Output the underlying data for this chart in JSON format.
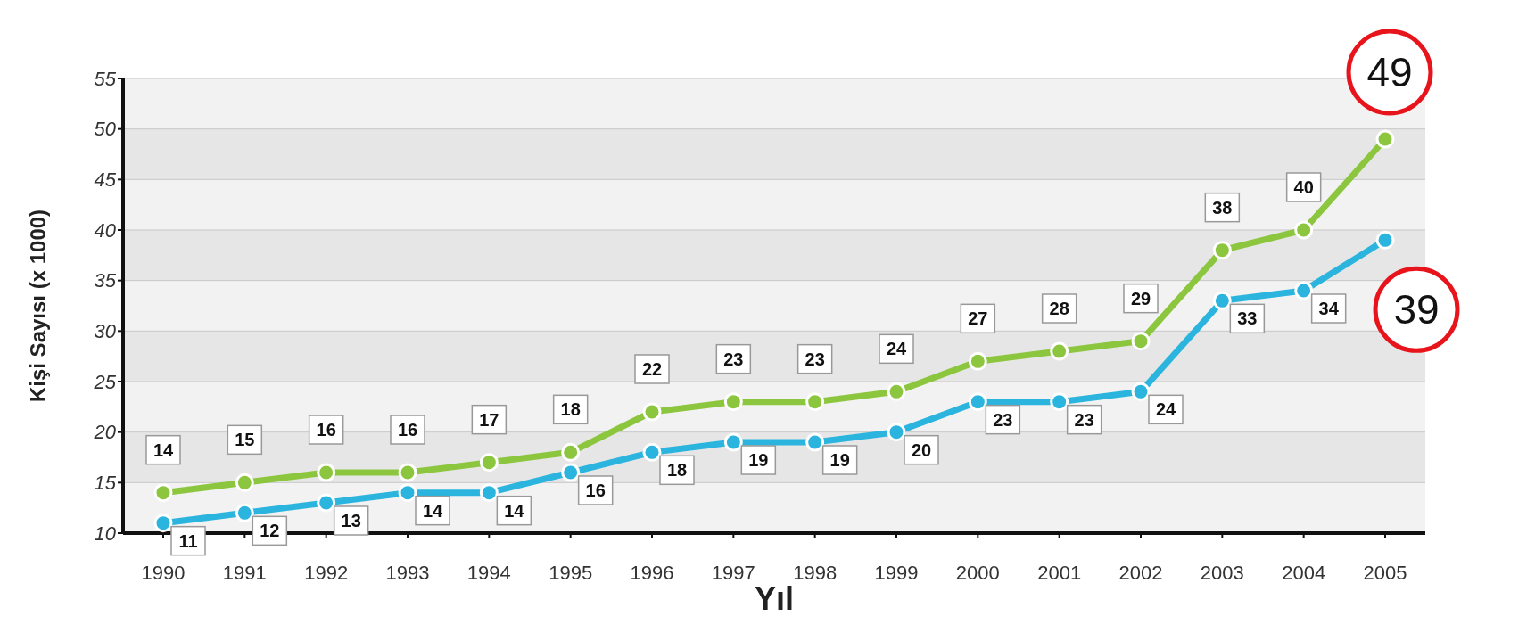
{
  "chart_data": {
    "type": "line",
    "xlabel": "Yıl",
    "ylabel": "Kişi Sayısı (x 1000)",
    "categories": [
      "1990",
      "1991",
      "1992",
      "1993",
      "1994",
      "1995",
      "1996",
      "1997",
      "1998",
      "1999",
      "2000",
      "2001",
      "2002",
      "2003",
      "2004",
      "2005"
    ],
    "series": [
      {
        "color": "#8cc63e",
        "values": [
          14,
          15,
          16,
          16,
          17,
          18,
          22,
          23,
          23,
          24,
          27,
          28,
          29,
          38,
          40,
          49
        ]
      },
      {
        "color": "#2bb5de",
        "values": [
          11,
          12,
          13,
          14,
          14,
          16,
          18,
          19,
          19,
          20,
          23,
          23,
          24,
          33,
          34,
          39
        ]
      }
    ],
    "ylim": [
      10,
      55
    ],
    "yticks": [
      10,
      15,
      20,
      25,
      30,
      35,
      40,
      45,
      50,
      55
    ],
    "grid": "y",
    "marker": "circle",
    "line_style": "solid",
    "data_labels": true,
    "legend": false
  }
}
